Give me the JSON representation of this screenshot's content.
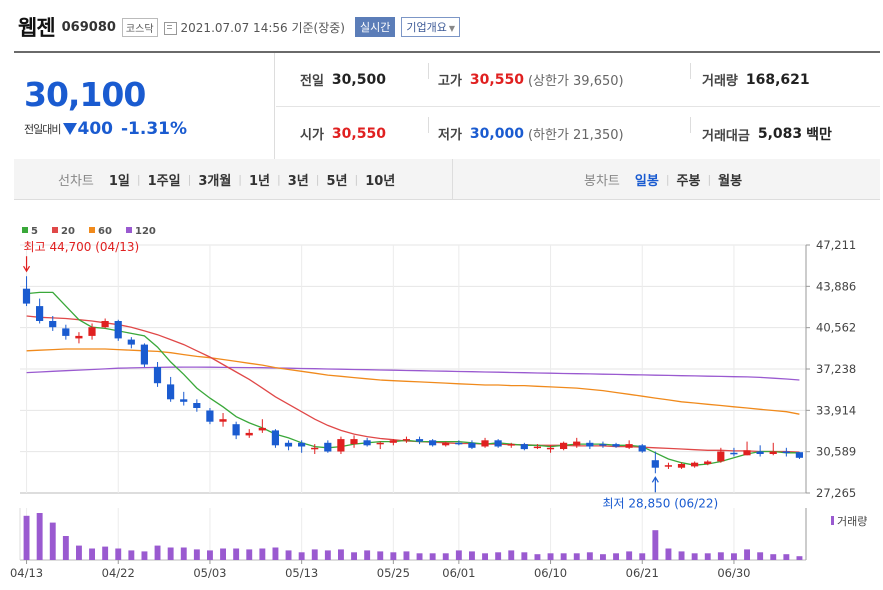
{
  "header": {
    "name": "웹젠",
    "code": "069080",
    "market": "코스닥",
    "datetime": "2021.07.07 14:56  기준(장중)",
    "realtime_label": "실시간",
    "company_label": "기업개요"
  },
  "quote": {
    "price": "30,100",
    "change_label": "전일대비",
    "change_amount": "400",
    "change_pct": "-1.31%",
    "prev_close_label": "전일",
    "prev_close": "30,500",
    "open_label": "시가",
    "open": "30,550",
    "high_label": "고가",
    "high": "30,550",
    "upper_limit": "(상한가 39,650)",
    "low_label": "저가",
    "low": "30,000",
    "lower_limit": "(하한가 21,350)",
    "volume_label": "거래량",
    "volume": "168,621",
    "amount_label": "거래대금",
    "amount": "5,083",
    "amount_unit": "백만"
  },
  "periods": {
    "line_label": "선차트",
    "line_items": [
      "1일",
      "1주일",
      "3개월",
      "1년",
      "3년",
      "5년",
      "10년"
    ],
    "candle_label": "봉차트",
    "candle_items": [
      "일봉",
      "주봉",
      "월봉"
    ],
    "active_candle": "일봉"
  },
  "colors": {
    "up": "#e02020",
    "down": "#1a5bd0",
    "ma5": "#3aa83a",
    "ma20": "#e04848",
    "ma60": "#f08a1c",
    "ma120": "#9a5ad0",
    "volume": "#9a5ad0"
  },
  "chart_data": {
    "type": "candlestick",
    "y_ticks": [
      "47,211",
      "43,886",
      "40,562",
      "37,238",
      "33,914",
      "30,589",
      "27,265"
    ],
    "ylim": [
      27265,
      47211
    ],
    "x_tick_labels": [
      "04/13",
      "04/22",
      "05/03",
      "05/13",
      "05/25",
      "06/01",
      "06/10",
      "06/21",
      "06/30"
    ],
    "legend": [
      {
        "label": "5",
        "color": "#3aa83a"
      },
      {
        "label": "20",
        "color": "#e04848"
      },
      {
        "label": "60",
        "color": "#f08a1c"
      },
      {
        "label": "120",
        "color": "#9a5ad0"
      }
    ],
    "volume_label": "거래량",
    "annotations": {
      "high": {
        "text": "최고  44,700 (04/13)",
        "value": 44700
      },
      "low": {
        "text": "최저  28,850 (06/22)",
        "value": 28850
      }
    },
    "candles": [
      {
        "date": "04/13",
        "o": 43700,
        "h": 44700,
        "l": 42300,
        "c": 42500
      },
      {
        "date": "04/14",
        "o": 42300,
        "h": 42900,
        "l": 40900,
        "c": 41100
      },
      {
        "date": "04/15",
        "o": 41100,
        "h": 41500,
        "l": 40300,
        "c": 40600
      },
      {
        "date": "04/16",
        "o": 40500,
        "h": 40800,
        "l": 39600,
        "c": 39900
      },
      {
        "date": "04/19",
        "o": 39700,
        "h": 40200,
        "l": 39300,
        "c": 39900
      },
      {
        "date": "04/20",
        "o": 39900,
        "h": 40900,
        "l": 39600,
        "c": 40600
      },
      {
        "date": "04/21",
        "o": 40600,
        "h": 41300,
        "l": 40500,
        "c": 41100
      },
      {
        "date": "04/22",
        "o": 41100,
        "h": 41200,
        "l": 39500,
        "c": 39700
      },
      {
        "date": "04/23",
        "o": 39600,
        "h": 39800,
        "l": 38900,
        "c": 39200
      },
      {
        "date": "04/26",
        "o": 39200,
        "h": 39300,
        "l": 37400,
        "c": 37600
      },
      {
        "date": "04/27",
        "o": 37400,
        "h": 37800,
        "l": 35800,
        "c": 36100
      },
      {
        "date": "04/28",
        "o": 36000,
        "h": 36600,
        "l": 34600,
        "c": 34800
      },
      {
        "date": "04/29",
        "o": 34800,
        "h": 35400,
        "l": 34300,
        "c": 34600
      },
      {
        "date": "04/30",
        "o": 34500,
        "h": 34800,
        "l": 33800,
        "c": 34100
      },
      {
        "date": "05/03",
        "o": 33900,
        "h": 34100,
        "l": 32800,
        "c": 33000
      },
      {
        "date": "05/04",
        "o": 33000,
        "h": 33700,
        "l": 32600,
        "c": 33200
      },
      {
        "date": "05/06",
        "o": 32800,
        "h": 33000,
        "l": 31600,
        "c": 31900
      },
      {
        "date": "05/07",
        "o": 31900,
        "h": 32400,
        "l": 31700,
        "c": 32100
      },
      {
        "date": "05/10",
        "o": 32300,
        "h": 33200,
        "l": 32100,
        "c": 32500
      },
      {
        "date": "05/11",
        "o": 32300,
        "h": 32400,
        "l": 30900,
        "c": 31100
      },
      {
        "date": "05/12",
        "o": 31300,
        "h": 31500,
        "l": 30700,
        "c": 31000
      },
      {
        "date": "05/13",
        "o": 31300,
        "h": 31500,
        "l": 30500,
        "c": 31000
      },
      {
        "date": "05/14",
        "o": 30900,
        "h": 31200,
        "l": 30400,
        "c": 30900
      },
      {
        "date": "05/17",
        "o": 31300,
        "h": 31500,
        "l": 30500,
        "c": 30600
      },
      {
        "date": "05/18",
        "o": 30600,
        "h": 31800,
        "l": 30400,
        "c": 31600
      },
      {
        "date": "05/20",
        "o": 31200,
        "h": 31900,
        "l": 30900,
        "c": 31600
      },
      {
        "date": "05/21",
        "o": 31500,
        "h": 31700,
        "l": 31000,
        "c": 31100
      },
      {
        "date": "05/24",
        "o": 31200,
        "h": 31400,
        "l": 30800,
        "c": 31300
      },
      {
        "date": "05/25",
        "o": 31300,
        "h": 31600,
        "l": 31100,
        "c": 31500
      },
      {
        "date": "05/26",
        "o": 31500,
        "h": 31800,
        "l": 31300,
        "c": 31600
      },
      {
        "date": "05/27",
        "o": 31600,
        "h": 31800,
        "l": 31200,
        "c": 31400
      },
      {
        "date": "05/28",
        "o": 31500,
        "h": 31600,
        "l": 31000,
        "c": 31100
      },
      {
        "date": "05/31",
        "o": 31100,
        "h": 31400,
        "l": 31000,
        "c": 31300
      },
      {
        "date": "06/01",
        "o": 31300,
        "h": 31500,
        "l": 31100,
        "c": 31200
      },
      {
        "date": "06/02",
        "o": 31300,
        "h": 31500,
        "l": 30800,
        "c": 30900
      },
      {
        "date": "06/03",
        "o": 31000,
        "h": 31700,
        "l": 30900,
        "c": 31500
      },
      {
        "date": "06/04",
        "o": 31500,
        "h": 31600,
        "l": 30900,
        "c": 31000
      },
      {
        "date": "06/07",
        "o": 31100,
        "h": 31300,
        "l": 30900,
        "c": 31200
      },
      {
        "date": "06/08",
        "o": 31200,
        "h": 31300,
        "l": 30700,
        "c": 30800
      },
      {
        "date": "06/09",
        "o": 30900,
        "h": 31200,
        "l": 30800,
        "c": 31000
      },
      {
        "date": "06/10",
        "o": 30900,
        "h": 31100,
        "l": 30500,
        "c": 30900
      },
      {
        "date": "06/11",
        "o": 30800,
        "h": 31400,
        "l": 30700,
        "c": 31300
      },
      {
        "date": "06/14",
        "o": 31100,
        "h": 31700,
        "l": 30900,
        "c": 31400
      },
      {
        "date": "06/15",
        "o": 31300,
        "h": 31500,
        "l": 30800,
        "c": 31000
      },
      {
        "date": "06/16",
        "o": 31200,
        "h": 31400,
        "l": 30900,
        "c": 31100
      },
      {
        "date": "06/17",
        "o": 31200,
        "h": 31300,
        "l": 30900,
        "c": 31000
      },
      {
        "date": "06/18",
        "o": 30900,
        "h": 31500,
        "l": 30800,
        "c": 31200
      },
      {
        "date": "06/21",
        "o": 31100,
        "h": 31200,
        "l": 30500,
        "c": 30600
      },
      {
        "date": "06/22",
        "o": 29900,
        "h": 30600,
        "l": 28850,
        "c": 29300
      },
      {
        "date": "06/23",
        "o": 29500,
        "h": 29700,
        "l": 29200,
        "c": 29500
      },
      {
        "date": "06/24",
        "o": 29300,
        "h": 29700,
        "l": 29200,
        "c": 29600
      },
      {
        "date": "06/25",
        "o": 29400,
        "h": 29800,
        "l": 29300,
        "c": 29700
      },
      {
        "date": "06/28",
        "o": 29600,
        "h": 29900,
        "l": 29500,
        "c": 29800
      },
      {
        "date": "06/29",
        "o": 29800,
        "h": 30900,
        "l": 29700,
        "c": 30600
      },
      {
        "date": "06/30",
        "o": 30500,
        "h": 30900,
        "l": 30200,
        "c": 30400
      },
      {
        "date": "07/01",
        "o": 30300,
        "h": 31400,
        "l": 30300,
        "c": 30700
      },
      {
        "date": "07/02",
        "o": 30600,
        "h": 31100,
        "l": 30200,
        "c": 30400
      },
      {
        "date": "07/05",
        "o": 30400,
        "h": 31300,
        "l": 30300,
        "c": 30600
      },
      {
        "date": "07/06",
        "o": 30600,
        "h": 30900,
        "l": 30200,
        "c": 30500
      },
      {
        "date": "07/07",
        "o": 30550,
        "h": 30550,
        "l": 30000,
        "c": 30100
      }
    ],
    "volume": [
      0.92,
      0.98,
      0.78,
      0.5,
      0.3,
      0.24,
      0.28,
      0.24,
      0.2,
      0.18,
      0.3,
      0.26,
      0.26,
      0.22,
      0.2,
      0.24,
      0.24,
      0.22,
      0.24,
      0.26,
      0.2,
      0.16,
      0.22,
      0.2,
      0.22,
      0.16,
      0.2,
      0.18,
      0.16,
      0.18,
      0.14,
      0.14,
      0.14,
      0.2,
      0.18,
      0.14,
      0.16,
      0.2,
      0.16,
      0.12,
      0.14,
      0.14,
      0.14,
      0.16,
      0.12,
      0.14,
      0.18,
      0.14,
      0.62,
      0.24,
      0.18,
      0.14,
      0.14,
      0.16,
      0.14,
      0.22,
      0.16,
      0.12,
      0.12,
      0.08
    ],
    "ma5": [
      43300,
      43400,
      43400,
      42300,
      41200,
      40600,
      40500,
      40300,
      40100,
      39900,
      39000,
      37800,
      36800,
      35700,
      34900,
      34200,
      33400,
      32900,
      32500,
      32000,
      31700,
      31300,
      31000,
      30900,
      31000,
      31200,
      31300,
      31400,
      31400,
      31500,
      31400,
      31400,
      31400,
      31400,
      31300,
      31200,
      31300,
      31200,
      31100,
      31100,
      31000,
      31100,
      31200,
      31200,
      31200,
      31100,
      31100,
      31000,
      30500,
      30000,
      29700,
      29500,
      29600,
      29800,
      30100,
      30400,
      30600,
      30600,
      30500,
      30500
    ],
    "ma20": [
      41500,
      41400,
      41350,
      41300,
      41200,
      41100,
      40950,
      40800,
      40600,
      40300,
      40000,
      39600,
      39200,
      38700,
      38200,
      37600,
      37000,
      36400,
      35700,
      35000,
      34400,
      33800,
      33200,
      32700,
      32300,
      32000,
      31800,
      31650,
      31550,
      31450,
      31400,
      31350,
      31300,
      31250,
      31250,
      31200,
      31200,
      31150,
      31150,
      31100,
      31100,
      31100,
      31050,
      31050,
      31050,
      31000,
      31000,
      30950,
      30900,
      30850,
      30800,
      30750,
      30700,
      30700,
      30650,
      30650,
      30600,
      30600,
      30600,
      30550
    ],
    "ma60": [
      38700,
      38750,
      38800,
      38850,
      38850,
      38850,
      38850,
      38800,
      38750,
      38700,
      38650,
      38550,
      38400,
      38250,
      38150,
      38000,
      37850,
      37700,
      37550,
      37350,
      37200,
      37050,
      36900,
      36750,
      36650,
      36550,
      36450,
      36350,
      36300,
      36250,
      36200,
      36150,
      36100,
      36050,
      36000,
      35950,
      35950,
      35900,
      35900,
      35850,
      35800,
      35750,
      35700,
      35600,
      35500,
      35350,
      35200,
      35050,
      34900,
      34750,
      34600,
      34500,
      34400,
      34300,
      34200,
      34100,
      34000,
      33900,
      33800,
      33600
    ],
    "ma120": [
      36950,
      37000,
      37050,
      37100,
      37150,
      37200,
      37250,
      37300,
      37330,
      37350,
      37370,
      37380,
      37390,
      37390,
      37380,
      37370,
      37360,
      37350,
      37340,
      37320,
      37300,
      37280,
      37260,
      37240,
      37220,
      37200,
      37180,
      37160,
      37140,
      37120,
      37100,
      37080,
      37060,
      37040,
      37020,
      37000,
      36980,
      36960,
      36940,
      36920,
      36900,
      36880,
      36860,
      36840,
      36820,
      36800,
      36780,
      36760,
      36740,
      36720,
      36700,
      36680,
      36660,
      36640,
      36620,
      36600,
      36560,
      36500,
      36430,
      36350
    ]
  }
}
